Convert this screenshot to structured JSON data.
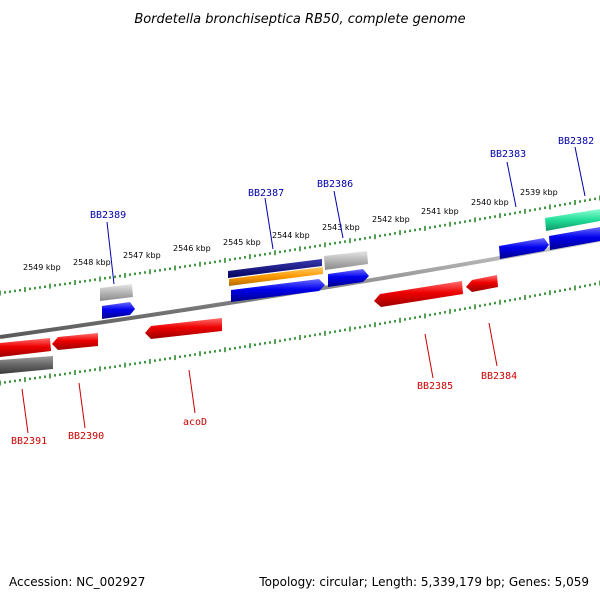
{
  "title": "Bordetella bronchiseptica RB50, complete genome",
  "footer": {
    "accession": "Accession: NC_002927",
    "summary": "Topology: circular; Length: 5,339,179 bp; Genes: 5,059"
  },
  "colors": {
    "forward_label": "#0000aa",
    "reverse_label": "#cc0000",
    "tick": "#2a8a2a",
    "backbone": "#808080"
  },
  "scale_labels": [
    "2549 kbp",
    "2548 kbp",
    "2547 kbp",
    "2546 kbp",
    "2545 kbp",
    "2544 kbp",
    "2543 kbp",
    "2542 kbp",
    "2541 kbp",
    "2540 kbp",
    "2539 kbp"
  ],
  "genes_forward": [
    {
      "name": "BB2389",
      "color": "blue"
    },
    {
      "name": "BB2387",
      "color": "blue"
    },
    {
      "name": "BB2386",
      "color": "blue"
    },
    {
      "name": "BB2383",
      "color": "blue"
    },
    {
      "name": "BB2382",
      "color": "green"
    }
  ],
  "genes_reverse": [
    {
      "name": "BB2391",
      "color": "red"
    },
    {
      "name": "BB2390",
      "color": "red"
    },
    {
      "name": "acoD",
      "color": "red"
    },
    {
      "name": "BB2385",
      "color": "red"
    },
    {
      "name": "BB2384",
      "color": "red"
    }
  ]
}
